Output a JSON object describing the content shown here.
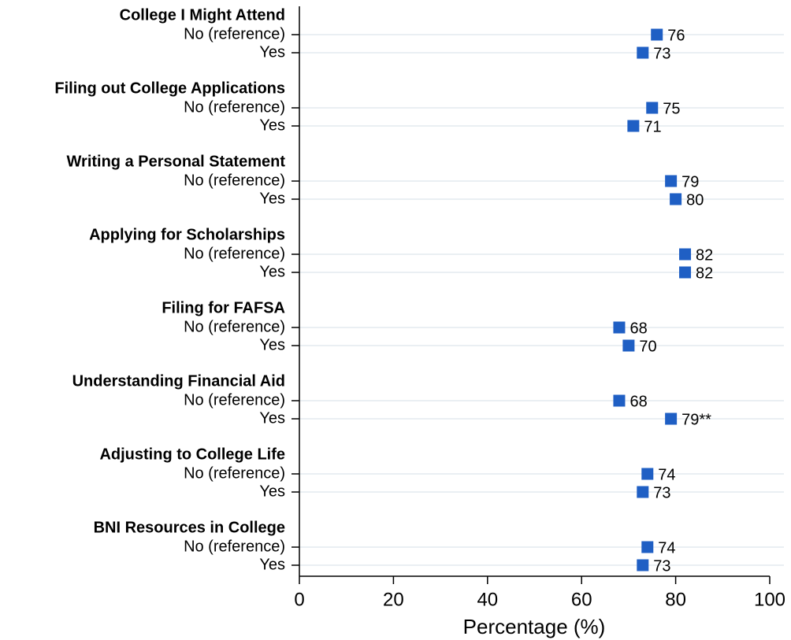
{
  "chart_data": {
    "type": "dot",
    "x_label": "Percentage (%)",
    "xlim": [
      0,
      100
    ],
    "xticks": [
      0,
      20,
      40,
      60,
      80,
      100
    ],
    "grid": true,
    "color": "#1f5fc4",
    "groups": [
      {
        "title": "College I Might Attend",
        "categories": [
          "No (reference)",
          "Yes"
        ],
        "values": [
          76,
          73
        ]
      },
      {
        "title": "Filing out College Applications",
        "categories": [
          "No (reference)",
          "Yes"
        ],
        "values": [
          75,
          71
        ]
      },
      {
        "title": "Writing a Personal Statement",
        "categories": [
          "No (reference)",
          "Yes"
        ],
        "values": [
          79,
          80
        ]
      },
      {
        "title": "Applying for Scholarships",
        "categories": [
          "No (reference)",
          "Yes"
        ],
        "values": [
          82,
          82
        ]
      },
      {
        "title": "Filing for FAFSA",
        "categories": [
          "No (reference)",
          "Yes"
        ],
        "values": [
          68,
          70
        ]
      },
      {
        "title": "Understanding Financial Aid",
        "categories": [
          "No (reference)",
          "Yes"
        ],
        "values": [
          68,
          79
        ],
        "value_labels": [
          "68",
          "79**"
        ]
      },
      {
        "title": "Adjusting to College Life",
        "categories": [
          "No (reference)",
          "Yes"
        ],
        "values": [
          74,
          73
        ]
      },
      {
        "title": "BNI Resources in College",
        "categories": [
          "No (reference)",
          "Yes"
        ],
        "values": [
          74,
          73
        ]
      }
    ]
  }
}
